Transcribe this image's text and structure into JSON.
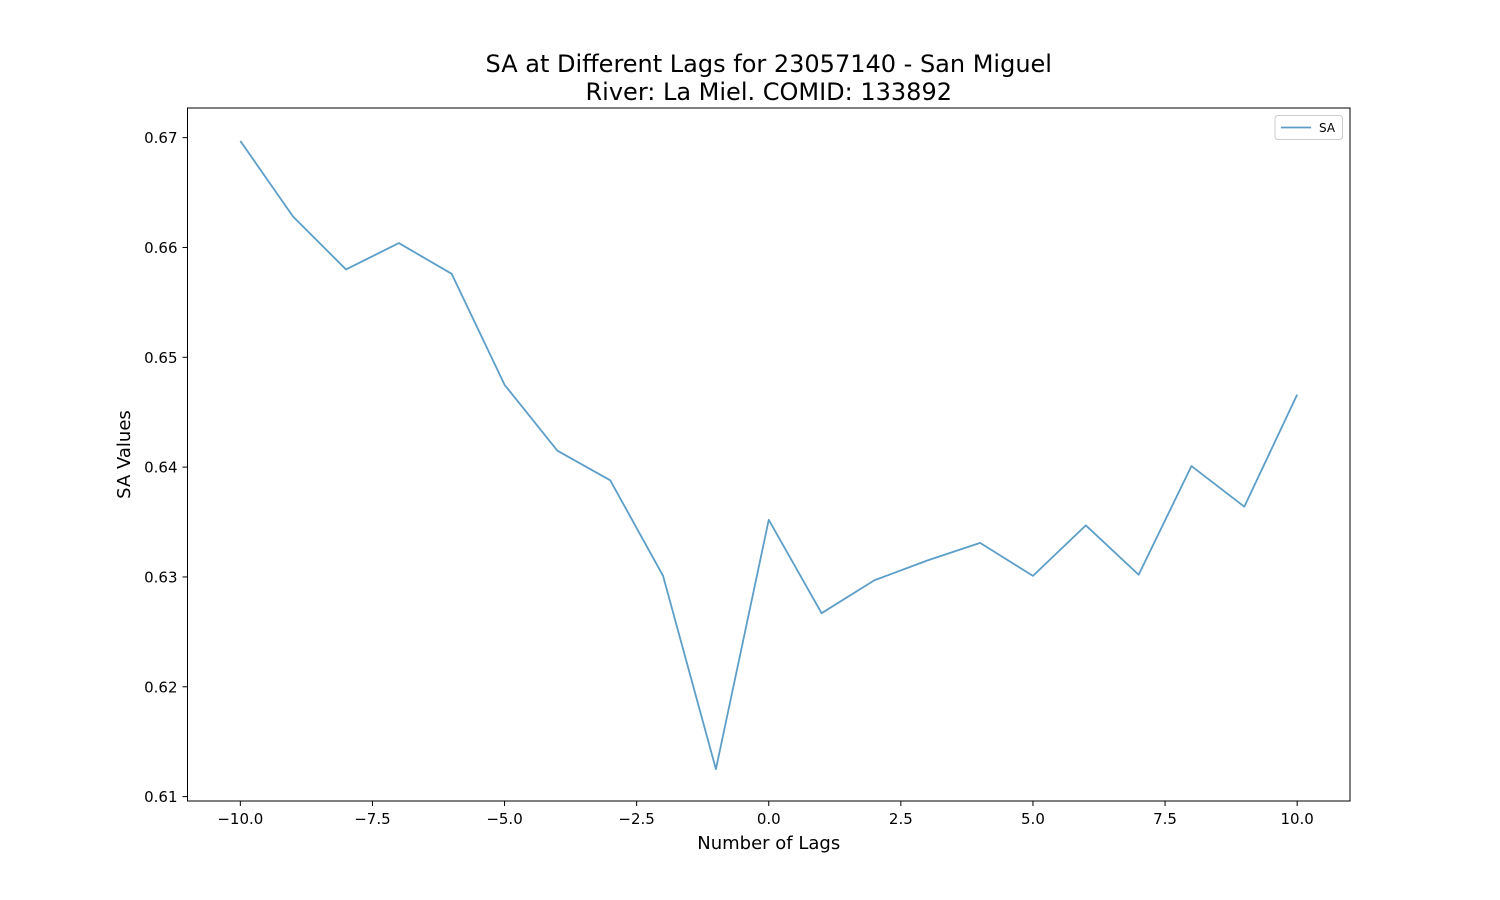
{
  "chart_data": {
    "type": "line",
    "title_lines": [
      "SA at Different Lags for 23057140 - San Miguel",
      "River: La Miel. COMID: 133892"
    ],
    "xlabel": "Number of Lags",
    "ylabel": "SA Values",
    "xlim": [
      -11,
      11
    ],
    "ylim": [
      0.6096,
      0.6727
    ],
    "xticks": [
      -10,
      -7.5,
      -5,
      -2.5,
      0,
      2.5,
      5,
      7.5,
      10
    ],
    "xtick_labels": [
      "−10.0",
      "−7.5",
      "−5.0",
      "−2.5",
      "0.0",
      "2.5",
      "5.0",
      "7.5",
      "10.0"
    ],
    "yticks": [
      0.61,
      0.62,
      0.63,
      0.64,
      0.65,
      0.66,
      0.67
    ],
    "ytick_labels": [
      "0.61",
      "0.62",
      "0.63",
      "0.64",
      "0.65",
      "0.66",
      "0.67"
    ],
    "grid": false,
    "legend_position": "top-right",
    "series": [
      {
        "name": "SA",
        "color": "#5d9ec9",
        "x": [
          -10,
          -9,
          -8,
          -7,
          -6,
          -5,
          -4,
          -3,
          -2,
          -1,
          0,
          1,
          2,
          3,
          4,
          5,
          6,
          7,
          8,
          9,
          10
        ],
        "values": [
          0.6697,
          0.6628,
          0.658,
          0.6604,
          0.6576,
          0.6475,
          0.6415,
          0.6388,
          0.6301,
          0.6125,
          0.6352,
          0.6267,
          0.6297,
          0.6315,
          0.6331,
          0.6301,
          0.6347,
          0.6302,
          0.6401,
          0.6364,
          0.6466
        ]
      }
    ]
  }
}
